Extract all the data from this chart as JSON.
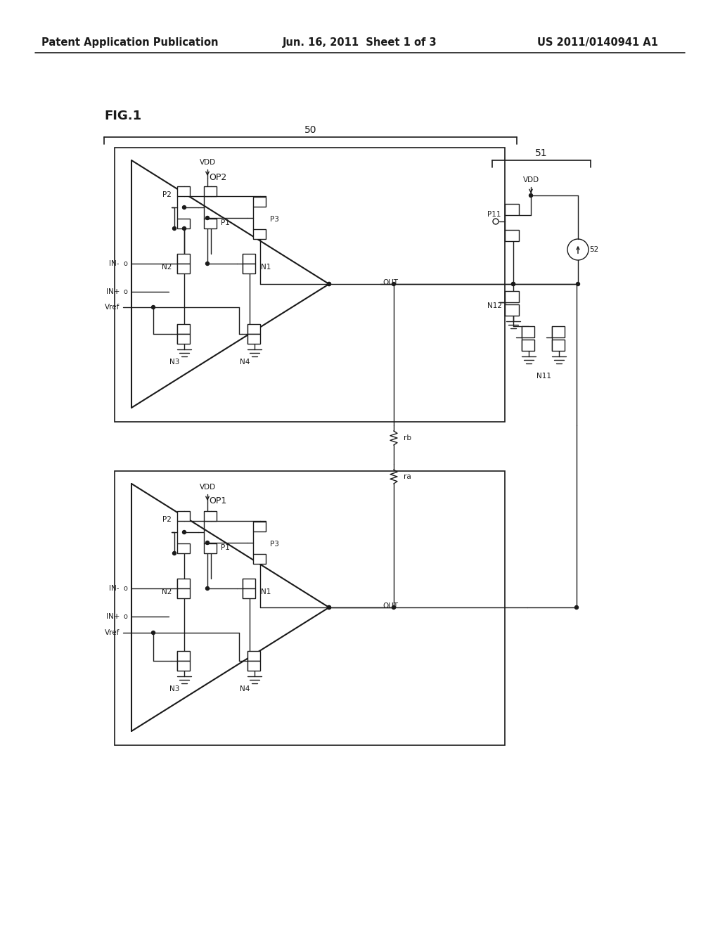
{
  "title_left": "Patent Application Publication",
  "title_center": "Jun. 16, 2011  Sheet 1 of 3",
  "title_right": "US 2011/0140941 A1",
  "fig_label": "FIG.1",
  "background": "#ffffff",
  "line_color": "#1a1a1a",
  "font_color": "#1a1a1a",
  "header_fontsize": 10.5,
  "fig_label_fontsize": 13,
  "label_fontsize": 9,
  "small_fontsize": 7.5
}
